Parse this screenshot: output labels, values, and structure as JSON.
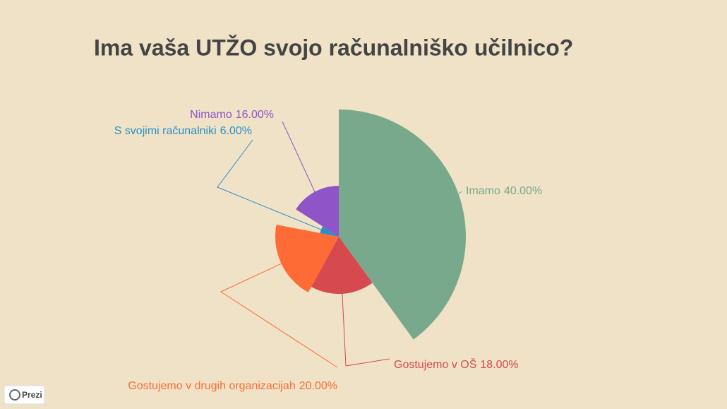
{
  "chart_data": {
    "type": "rose",
    "title": "Ima vaša UTŽO svojo računalniško učilnico?",
    "categories": [
      "Imamo",
      "Gostujemo v OŠ",
      "Gostujemo v drugih organizacijah",
      "S svojimi računalniki",
      "Nimamo"
    ],
    "values": [
      40,
      18,
      20,
      6,
      16
    ],
    "value_labels": [
      "40.00%",
      "18.00%",
      "20.00%",
      "6.00%",
      "16.00%"
    ],
    "colors": [
      "#78a98c",
      "#d64a4f",
      "#ff6b35",
      "#2b8fc7",
      "#8e54c8"
    ]
  },
  "badge": "Prezi"
}
